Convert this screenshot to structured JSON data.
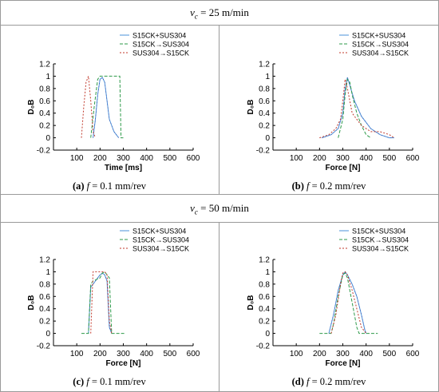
{
  "rows": [
    {
      "title_sym": "v",
      "title_sub": "c",
      "title_rest": " = 25 m/min"
    },
    {
      "title_sym": "v",
      "title_sub": "c",
      "title_rest": " = 50 m/min"
    }
  ],
  "captions": [
    {
      "tag": "(a)",
      "sym": "f",
      "rest": " = 0.1 mm/rev"
    },
    {
      "tag": "(b)",
      "sym": "f",
      "rest": " = 0.2 mm/rev"
    },
    {
      "tag": "(c)",
      "sym": "f",
      "rest": " = 0.1 mm/rev"
    },
    {
      "tag": "(d)",
      "sym": "f",
      "rest": " = 0.2 mm/rev"
    }
  ],
  "colors": {
    "s1": "#4a90d9",
    "s2": "#2e9a4a",
    "s3": "#c0392b",
    "s1b": "#3a3aa0"
  },
  "chart_data": [
    {
      "type": "line",
      "xlabel": "Time [ms]",
      "ylabel": "D₀B",
      "xlim": [
        0,
        600
      ],
      "ylim": [
        -0.2,
        1.2
      ],
      "xticks": [
        100,
        200,
        300,
        400,
        500,
        600
      ],
      "yticks": [
        -0.2,
        0,
        0.2,
        0.4,
        0.6,
        0.8,
        1,
        1.2
      ],
      "series": [
        {
          "name": "S15CK+SUS304",
          "x": [
            170,
            180,
            190,
            200,
            210,
            220,
            230,
            240,
            260,
            280
          ],
          "y": [
            0,
            0.3,
            0.7,
            0.95,
            0.98,
            0.9,
            0.6,
            0.3,
            0.1,
            0
          ]
        },
        {
          "name": "S15CK→SUS304",
          "x": [
            160,
            175,
            190,
            200,
            210,
            260,
            285,
            290,
            300
          ],
          "y": [
            0,
            0.5,
            0.95,
            1,
            1,
            1,
            1,
            0,
            0
          ]
        },
        {
          "name": "SUS304→S15CK",
          "x": [
            120,
            130,
            140,
            150,
            160,
            170,
            180
          ],
          "y": [
            0,
            0.5,
            0.9,
            1,
            0.6,
            0.1,
            0
          ]
        }
      ]
    },
    {
      "type": "line",
      "xlabel": "Force [N]",
      "ylabel": "D₀B",
      "xlim": [
        0,
        600
      ],
      "ylim": [
        -0.2,
        1.2
      ],
      "xticks": [
        100,
        200,
        300,
        400,
        500,
        600
      ],
      "yticks": [
        -0.2,
        0,
        0.2,
        0.4,
        0.6,
        0.8,
        1,
        1.2
      ],
      "series": [
        {
          "name": "S15CK+SUS304",
          "x": [
            210,
            250,
            280,
            300,
            310,
            320,
            330,
            350,
            380,
            420,
            460,
            500,
            520
          ],
          "y": [
            0,
            0.05,
            0.15,
            0.4,
            0.8,
            0.98,
            0.85,
            0.6,
            0.35,
            0.15,
            0.05,
            0,
            0
          ]
        },
        {
          "name": "S15CK→SUS304",
          "x": [
            280,
            300,
            310,
            320,
            330,
            340,
            360,
            380,
            400,
            420
          ],
          "y": [
            0,
            0.3,
            0.7,
            0.95,
            0.9,
            0.7,
            0.4,
            0.2,
            0.05,
            0
          ]
        },
        {
          "name": "SUS304→S15CK",
          "x": [
            200,
            240,
            270,
            290,
            300,
            310,
            320,
            340,
            380,
            420,
            460,
            500,
            520
          ],
          "y": [
            0,
            0.05,
            0.15,
            0.3,
            0.6,
            0.95,
            0.8,
            0.4,
            0.2,
            0.1,
            0.1,
            0.05,
            0
          ]
        }
      ]
    },
    {
      "type": "line",
      "xlabel": "Force [N]",
      "ylabel": "D₀B",
      "xlim": [
        0,
        600
      ],
      "ylim": [
        -0.2,
        1.2
      ],
      "xticks": [
        100,
        200,
        300,
        400,
        500,
        600
      ],
      "yticks": [
        -0.2,
        0,
        0.2,
        0.4,
        0.6,
        0.8,
        1,
        1.2
      ],
      "series": [
        {
          "name": "S15CK+SUS304",
          "x": [
            150,
            160,
            170,
            180,
            190,
            200,
            210,
            220,
            230,
            240,
            250
          ],
          "y": [
            0,
            0.75,
            0.8,
            0.85,
            0.9,
            0.95,
            0.98,
            0.95,
            0.85,
            0.1,
            0
          ]
        },
        {
          "name": "S15CK→SUS304",
          "x": [
            120,
            150,
            160,
            170,
            200,
            210,
            220,
            240,
            250,
            260,
            310
          ],
          "y": [
            0,
            0,
            0.8,
            0.85,
            0.9,
            0.98,
            1,
            0.9,
            0,
            0,
            0
          ]
        },
        {
          "name": "SUS304→S15CK",
          "x": [
            160,
            170,
            180,
            200,
            220,
            230,
            240,
            250
          ],
          "y": [
            0,
            1,
            1,
            1,
            1,
            0.95,
            0.2,
            0
          ]
        }
      ]
    },
    {
      "type": "line",
      "xlabel": "Force [N]",
      "ylabel": "D₀B",
      "xlim": [
        0,
        600
      ],
      "ylim": [
        -0.2,
        1.2
      ],
      "xticks": [
        100,
        200,
        300,
        400,
        500,
        600
      ],
      "yticks": [
        -0.2,
        0,
        0.2,
        0.4,
        0.6,
        0.8,
        1,
        1.2
      ],
      "series": [
        {
          "name": "S15CK+SUS304",
          "x": [
            240,
            260,
            280,
            300,
            310,
            320,
            340,
            360,
            380,
            395,
            400
          ],
          "y": [
            0,
            0.3,
            0.7,
            0.95,
            1,
            0.95,
            0.8,
            0.6,
            0.3,
            0.05,
            0
          ]
        },
        {
          "name": "S15CK→SUS304",
          "x": [
            200,
            250,
            260,
            280,
            300,
            310,
            320,
            340,
            360,
            370,
            450
          ],
          "y": [
            0,
            0,
            0.15,
            0.6,
            0.95,
            0.98,
            0.9,
            0.5,
            0.1,
            0,
            0
          ]
        },
        {
          "name": "SUS304→S15CK",
          "x": [
            250,
            270,
            290,
            300,
            310,
            320,
            340,
            360,
            380,
            400
          ],
          "y": [
            0,
            0.3,
            0.8,
            0.98,
            1,
            0.95,
            0.7,
            0.4,
            0.1,
            0
          ]
        }
      ]
    }
  ]
}
